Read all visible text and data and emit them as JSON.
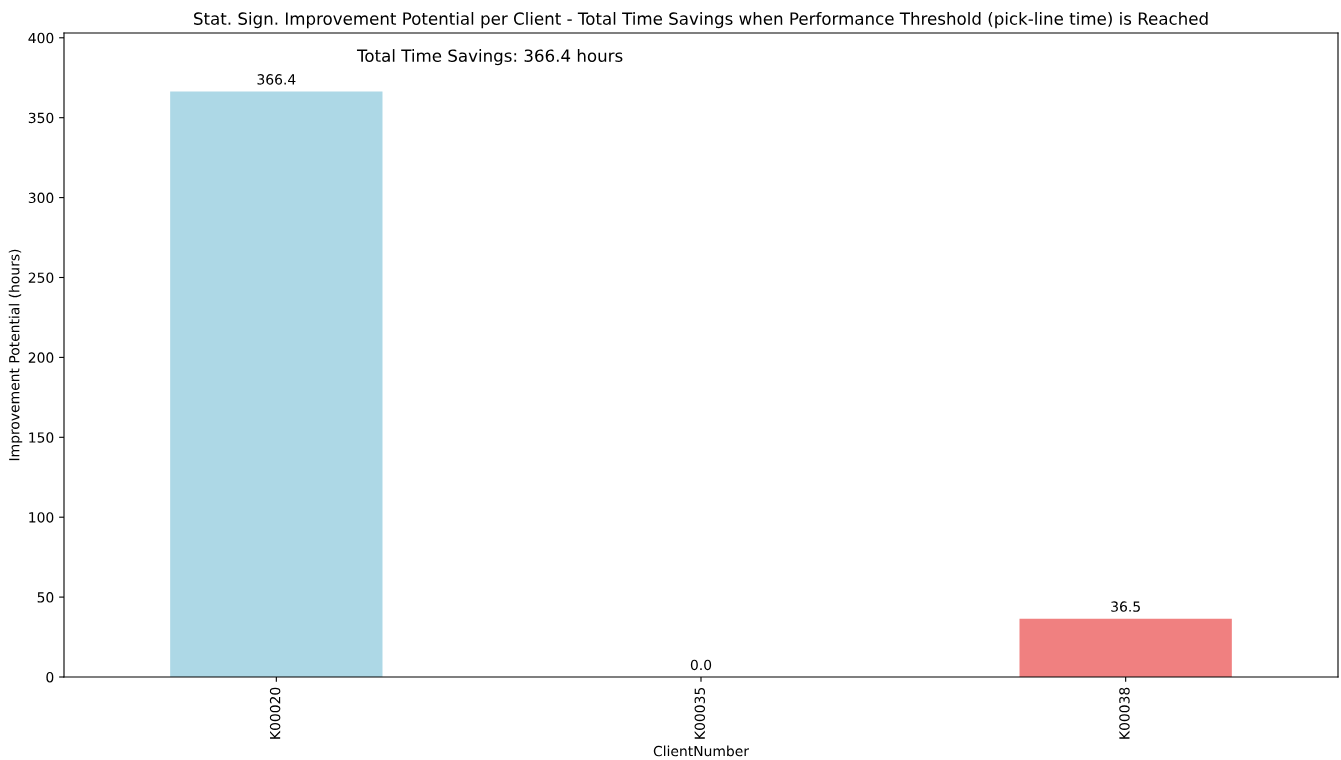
{
  "chart_data": {
    "type": "bar",
    "title": "Stat. Sign. Improvement Potential per Client - Total Time Savings when Performance Threshold (pick-line time) is Reached",
    "xlabel": "ClientNumber",
    "ylabel": "Improvement Potential (hours)",
    "categories": [
      "K00020",
      "K00035",
      "K00038"
    ],
    "values": [
      366.4,
      0.0,
      36.5
    ],
    "colors": [
      "#add8e6",
      "#90ee90",
      "#f08080"
    ],
    "ylim": [
      0,
      403
    ],
    "yticks": [
      0,
      50,
      100,
      150,
      200,
      250,
      300,
      350,
      400
    ],
    "value_labels": [
      "366.4",
      "0.0",
      "36.5"
    ],
    "grid": false,
    "legend": false,
    "annotations": [
      "Total Time Savings: 366.4 hours"
    ]
  }
}
